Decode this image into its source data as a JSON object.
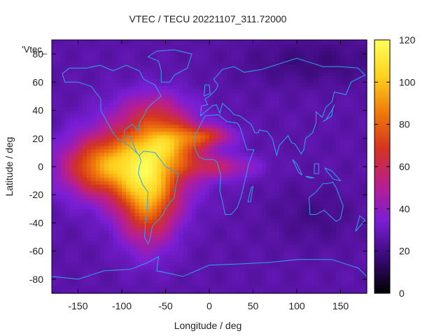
{
  "chart_data": {
    "type": "heatmap",
    "title": "VTEC / TECU 20221107_311.72000",
    "xlabel": "Longitude / deg",
    "ylabel": "Latitude / deg",
    "series_label": "'Vtec_",
    "xlim": [
      -180,
      180
    ],
    "ylim": [
      -90,
      90
    ],
    "xticks": [
      -150,
      -100,
      -50,
      0,
      50,
      100,
      150
    ],
    "yticks": [
      -80,
      -60,
      -40,
      -20,
      0,
      20,
      40,
      60,
      80
    ],
    "colorbar": {
      "min": 0,
      "max": 120,
      "ticks": [
        0,
        20,
        40,
        60,
        80,
        100,
        120
      ],
      "stops": [
        "#000000",
        "#3a0a78",
        "#7a1ed6",
        "#b91e8e",
        "#d4341e",
        "#f07a0a",
        "#ffd21e",
        "#ffff5a"
      ]
    },
    "background_vtec": 26,
    "regions": [
      {
        "lon": -75,
        "lat": 5,
        "sx": 38,
        "sy": 22,
        "peak": 58
      },
      {
        "lon": -130,
        "lat": 0,
        "sx": 30,
        "sy": 14,
        "peak": 42
      },
      {
        "lon": -70,
        "lat": -25,
        "sx": 22,
        "sy": 22,
        "peak": 48
      },
      {
        "lon": -40,
        "lat": 18,
        "sx": 25,
        "sy": 10,
        "peak": 35
      },
      {
        "lon": 0,
        "lat": 22,
        "sx": 20,
        "sy": 5,
        "peak": 30
      },
      {
        "lon": 10,
        "lat": 0,
        "sx": 30,
        "sy": 6,
        "peak": 25
      },
      {
        "lon": -60,
        "lat": 40,
        "sx": 25,
        "sy": 10,
        "peak": 18
      },
      {
        "lon": 120,
        "lat": -35,
        "sx": 35,
        "sy": 15,
        "peak": -6
      },
      {
        "lon": 120,
        "lat": 75,
        "sx": 60,
        "sy": 12,
        "peak": -8
      }
    ],
    "colors": {
      "coastline": "#29a9e6",
      "axis": "#000000"
    }
  }
}
